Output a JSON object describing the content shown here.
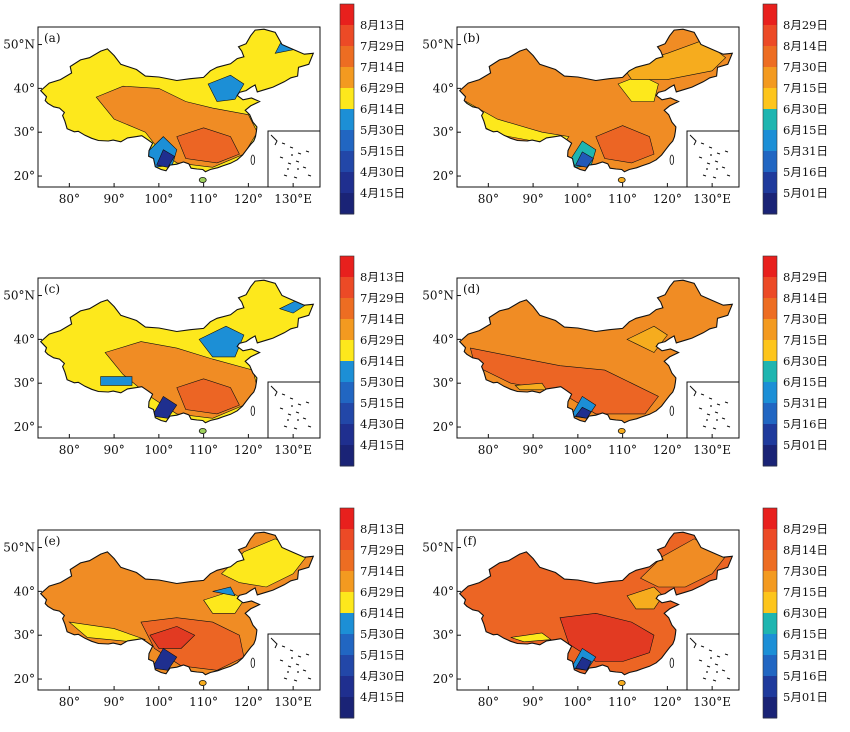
{
  "figure": {
    "panels": [
      {
        "label": "(a)",
        "legend_set": "A"
      },
      {
        "label": "(b)",
        "legend_set": "B"
      },
      {
        "label": "(c)",
        "legend_set": "A"
      },
      {
        "label": "(d)",
        "legend_set": "B"
      },
      {
        "label": "(e)",
        "legend_set": "A"
      },
      {
        "label": "(f)",
        "legend_set": "B"
      }
    ],
    "lat_ticks": [
      "50°N",
      "40°",
      "30°",
      "20°"
    ],
    "lon_ticks": [
      "80°",
      "90°",
      "100°",
      "110°",
      "120°",
      "130°E"
    ],
    "legends": {
      "A": {
        "labels": [
          "8月13日",
          "7月29日",
          "7月14日",
          "6月29日",
          "6月14日",
          "5月30日",
          "5月15日",
          "4月30日",
          "4月15日"
        ],
        "colors": [
          "#e8201d",
          "#ec4a26",
          "#ed6d22",
          "#f39a20",
          "#fde81c",
          "#1c8fd6",
          "#2166c2",
          "#2247a8",
          "#1f2f8f",
          "#1a2376"
        ]
      },
      "B": {
        "labels": [
          "8月29日",
          "8月14日",
          "7月30日",
          "7月15日",
          "6月30日",
          "6月15日",
          "5月31日",
          "5月16日",
          "5月01日"
        ],
        "colors": [
          "#e8201d",
          "#ec4a26",
          "#ed6d22",
          "#f39a20",
          "#fdc51c",
          "#1fb5b0",
          "#1c8fd6",
          "#2166c2",
          "#1f3a9c",
          "#1a2376"
        ]
      }
    }
  }
}
